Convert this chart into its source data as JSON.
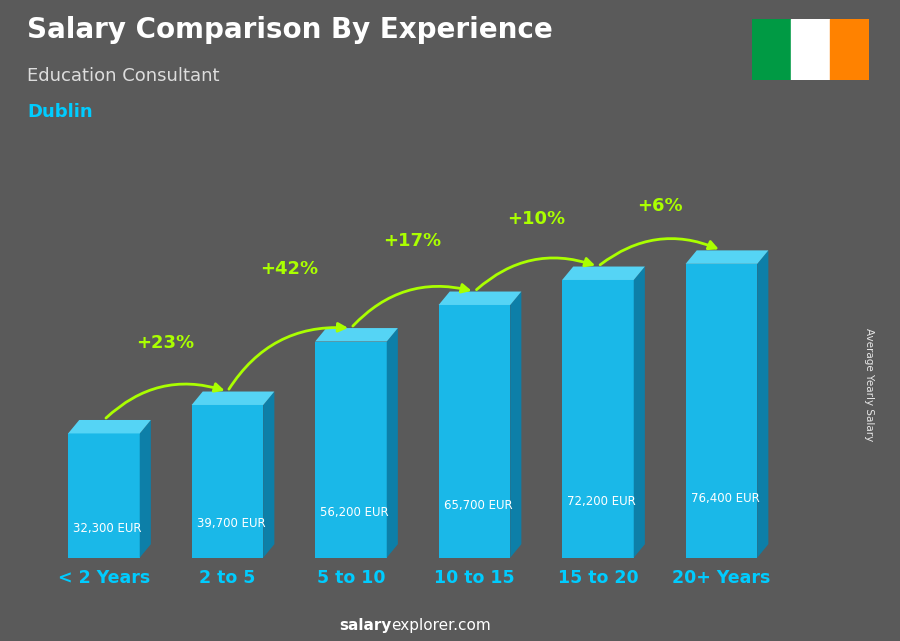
{
  "title": "Salary Comparison By Experience",
  "subtitle": "Education Consultant",
  "city": "Dublin",
  "ylabel": "Average Yearly Salary",
  "watermark_bold": "salary",
  "watermark_normal": "explorer.com",
  "categories": [
    "< 2 Years",
    "2 to 5",
    "5 to 10",
    "10 to 15",
    "15 to 20",
    "20+ Years"
  ],
  "values": [
    32300,
    39700,
    56200,
    65700,
    72200,
    76400
  ],
  "pct_changes": [
    "+23%",
    "+42%",
    "+17%",
    "+10%",
    "+6%"
  ],
  "salary_labels": [
    "32,300 EUR",
    "39,700 EUR",
    "56,200 EUR",
    "65,700 EUR",
    "72,200 EUR",
    "76,400 EUR"
  ],
  "bar_front_color": "#1ab8e8",
  "bar_top_color": "#55d4f5",
  "bar_side_color": "#0d7fa8",
  "bg_color": "#5a5a5a",
  "title_color": "#ffffff",
  "subtitle_color": "#dddddd",
  "city_color": "#00ccff",
  "pct_color": "#aaff00",
  "tick_color": "#00ccff",
  "salary_label_color": "#cccccc",
  "flag_colors": [
    "#009A44",
    "#FFFFFF",
    "#FF8200"
  ],
  "ylim": [
    0,
    90000
  ],
  "figsize": [
    9.0,
    6.41
  ],
  "dpi": 100,
  "bar_width": 0.58,
  "dx3d": 0.09,
  "dy3d": 3500
}
